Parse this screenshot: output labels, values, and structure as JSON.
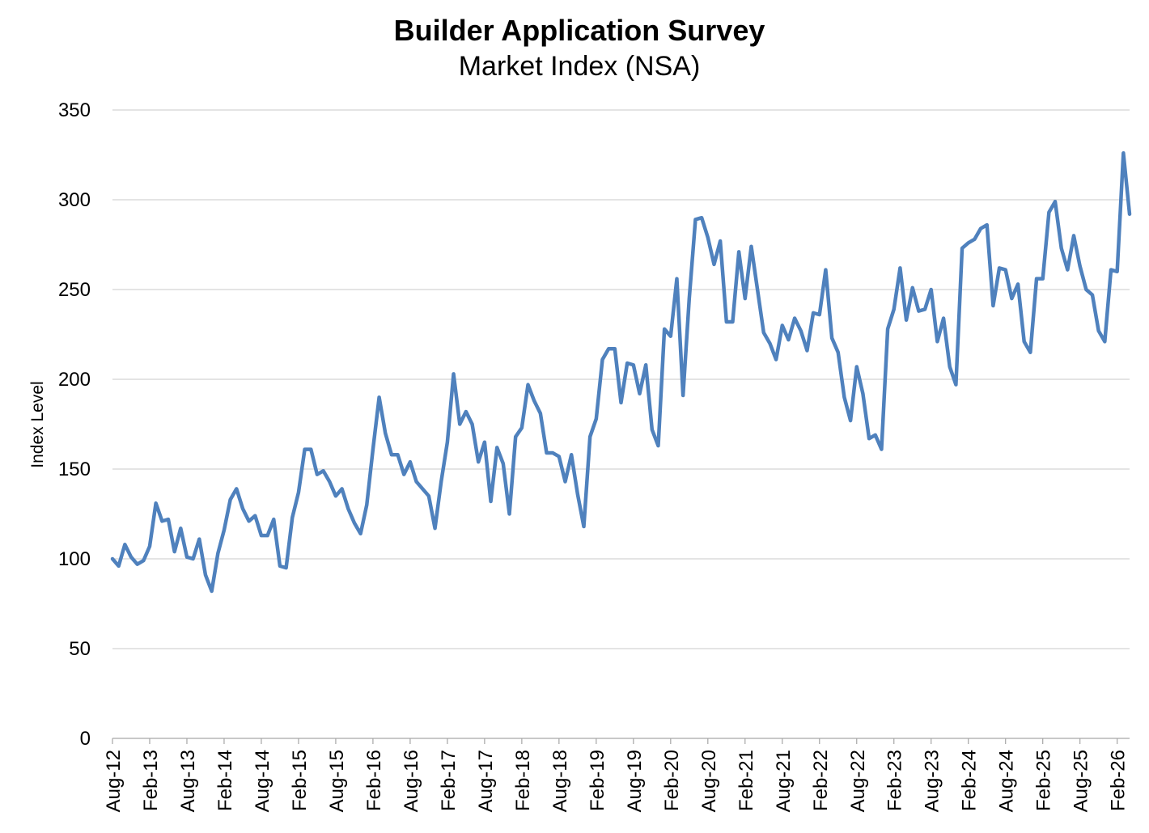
{
  "chart_data": {
    "type": "line",
    "title": "Builder Application Survey",
    "subtitle": "Market Index (NSA)",
    "ylabel": "Index Level",
    "xlabel": "",
    "ylim": [
      0,
      350
    ],
    "yticks": [
      0,
      50,
      100,
      150,
      200,
      250,
      300,
      350
    ],
    "grid": true,
    "legend": "none",
    "color": "#4f81bd",
    "x_tick_labels": [
      "Aug-12",
      "Feb-13",
      "Aug-13",
      "Feb-14",
      "Aug-14",
      "Feb-15",
      "Aug-15",
      "Feb-16",
      "Aug-16",
      "Feb-17",
      "Aug-17",
      "Feb-18",
      "Aug-18",
      "Feb-19",
      "Aug-19",
      "Feb-20",
      "Aug-20",
      "Feb-21",
      "Aug-21",
      "Feb-22",
      "Aug-22",
      "Feb-23",
      "Aug-23",
      "Feb-24",
      "Aug-24",
      "Feb-25",
      "Aug-25",
      "Feb-26"
    ],
    "series": [
      {
        "values": [
          100,
          96,
          108,
          101,
          97,
          99,
          107,
          131,
          121,
          122,
          104,
          117,
          101,
          100,
          111,
          91,
          82,
          103,
          116,
          133,
          139,
          128,
          121,
          124,
          113,
          113,
          122,
          96,
          95,
          123,
          137,
          161,
          161,
          147,
          149,
          143,
          135,
          139,
          128,
          120,
          114,
          130,
          161,
          190,
          170,
          158,
          158,
          147,
          154,
          143,
          139,
          135,
          117,
          143,
          165,
          203,
          175,
          182,
          175,
          154,
          165,
          132,
          162,
          153,
          125,
          168,
          173,
          197,
          188,
          181,
          159,
          159,
          157,
          143,
          158,
          136,
          118,
          168,
          178,
          211,
          217,
          217,
          187,
          209,
          208,
          192,
          208,
          172,
          163,
          228,
          224,
          256,
          191,
          245,
          289,
          290,
          279,
          264,
          277,
          232,
          232,
          271,
          245,
          274,
          250,
          226,
          220,
          211,
          230,
          222,
          234,
          227,
          216,
          237,
          236,
          261,
          223,
          215,
          190,
          177,
          207,
          192,
          167,
          169,
          161,
          228,
          239,
          262,
          233,
          251,
          238,
          239,
          250,
          221,
          234,
          207,
          197,
          273,
          276,
          278,
          284,
          286,
          241,
          262,
          261,
          245,
          253,
          221,
          215,
          256,
          256,
          293,
          299,
          273,
          261,
          280,
          263,
          250,
          247,
          227,
          221,
          261,
          260,
          326,
          292
        ]
      }
    ]
  }
}
